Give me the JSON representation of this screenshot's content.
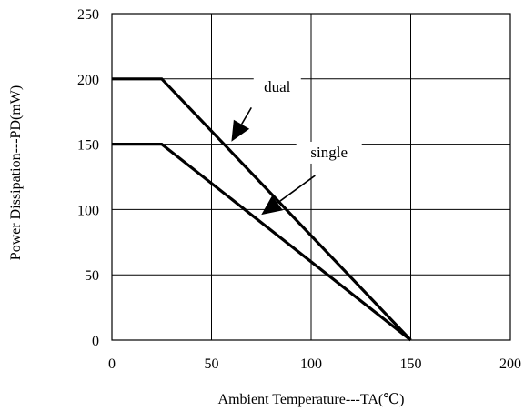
{
  "chart_data": {
    "type": "line",
    "xlabel": "Ambient Temperature---TA(℃)",
    "ylabel": "Power Dissipation---PD(mW)",
    "xlim": [
      0,
      200
    ],
    "ylim": [
      0,
      250
    ],
    "x_ticks": [
      0,
      50,
      100,
      150,
      200
    ],
    "y_ticks": [
      0,
      50,
      100,
      150,
      200,
      250
    ],
    "grid": true,
    "series": [
      {
        "name": "dual",
        "x": [
          0,
          25,
          150
        ],
        "y": [
          200,
          200,
          0
        ]
      },
      {
        "name": "single",
        "x": [
          0,
          25,
          150
        ],
        "y": [
          150,
          150,
          0
        ]
      }
    ],
    "annotations": [
      {
        "text": "dual",
        "series": "dual",
        "label_at": [
          83,
          190
        ],
        "arrow_from": [
          70,
          178
        ],
        "arrow_to": [
          60,
          152
        ]
      },
      {
        "text": "single",
        "series": "single",
        "label_at": [
          109,
          140
        ],
        "arrow_from": [
          102,
          126
        ],
        "arrow_to": [
          75,
          96
        ]
      }
    ]
  }
}
